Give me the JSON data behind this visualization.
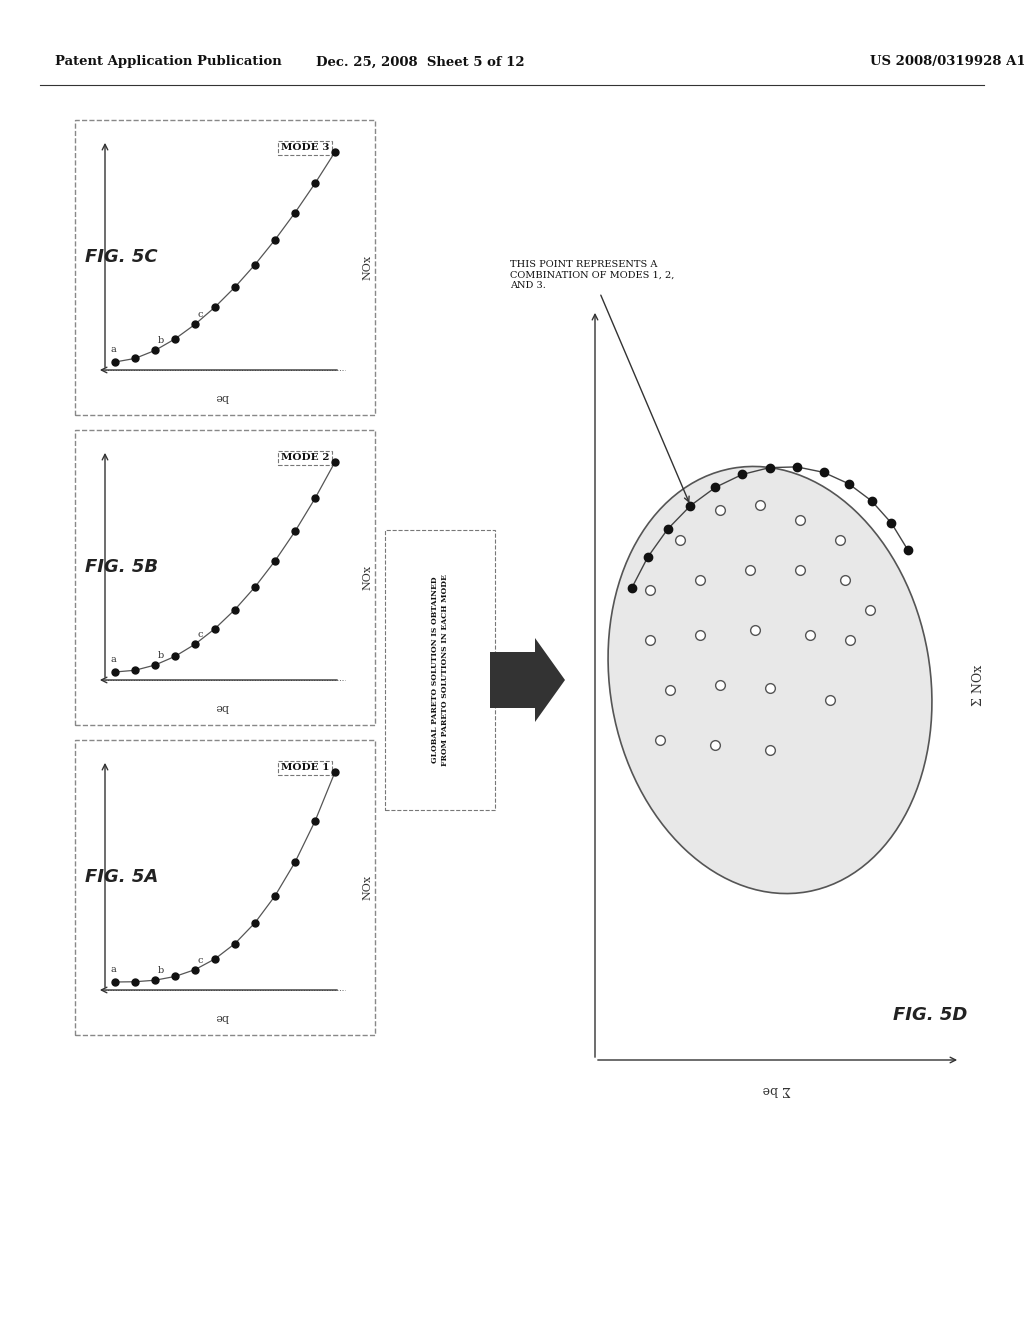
{
  "header_left": "Patent Application Publication",
  "header_mid": "Dec. 25, 2008  Sheet 5 of 12",
  "header_right": "US 2008/0319928 A1",
  "fig5a_label": "FIG. 5A",
  "fig5b_label": "FIG. 5B",
  "fig5c_label": "FIG. 5C",
  "fig5d_label": "FIG. 5D",
  "mode1_label": "MODE 1",
  "mode2_label": "MODE 2",
  "mode3_label": "MODE 3",
  "nox_label": "NOx",
  "be_label": "be",
  "sum_nox_label": "Σ NOx",
  "sum_be_label": "Σ be",
  "arrow_text_line1": "GLOBAL PARETO SOLUTION IS OBTAINED",
  "arrow_text_line2": "FROM PARETO SOLUTIONS IN EACH MODE",
  "annotation_text": "THIS POINT REPRESENTS A\nCOMBINATION OF MODES 1, 2,\nAND 3.",
  "bg_color": "#ffffff",
  "line_color": "#333333",
  "dot_color": "#111111",
  "arrow_fill": "#333333",
  "subplot_border": "#888888"
}
